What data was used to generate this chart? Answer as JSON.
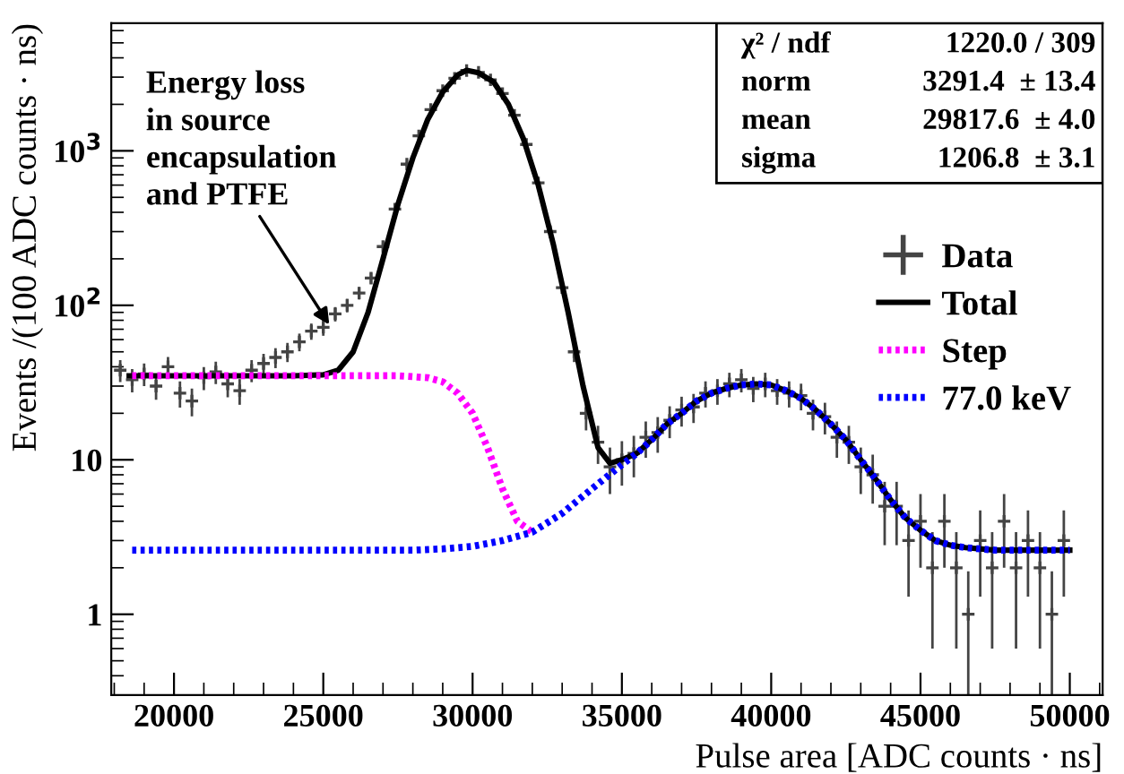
{
  "chart_data": {
    "type": "line",
    "xlabel": "Pulse area [ADC counts · ns]",
    "ylabel": "Events /(100 ADC counts · ns)",
    "xlim": [
      17900,
      51100
    ],
    "ylim": [
      0.3,
      6700
    ],
    "log": "y",
    "grid": false,
    "legend": "right",
    "xticks": [
      20000,
      25000,
      30000,
      35000,
      40000,
      45000,
      50000
    ],
    "yticks": [
      {
        "value": 1,
        "label": "1"
      },
      {
        "value": 10,
        "label": "10"
      },
      {
        "value": 100,
        "label": "10$^{2}$"
      },
      {
        "value": 1000,
        "label": "10$^{3}$"
      }
    ],
    "series": [
      {
        "name": "Data",
        "type": "scatter",
        "marker": "cross",
        "color": "#444444",
        "x": [
          18200,
          18600,
          19000,
          19400,
          19800,
          20200,
          20600,
          21000,
          21400,
          21800,
          22200,
          22600,
          23000,
          23400,
          23800,
          24200,
          24600,
          25000,
          25400,
          25800,
          26200,
          26600,
          27000,
          27400,
          27800,
          28200,
          28600,
          29000,
          29400,
          29800,
          30200,
          30600,
          31000,
          31400,
          31800,
          32200,
          32600,
          33000,
          33400,
          33800,
          34200,
          34600,
          35000,
          35400,
          35800,
          36200,
          36600,
          37000,
          37400,
          37800,
          38200,
          38600,
          39000,
          39400,
          39800,
          40200,
          40600,
          41000,
          41400,
          41800,
          42200,
          42600,
          43000,
          43400,
          43800,
          44200,
          44600,
          45000,
          45400,
          45800,
          46200,
          46600,
          47000,
          47400,
          47800,
          48200,
          48600,
          49000,
          49400,
          49800
        ],
        "values": [
          38,
          33,
          36,
          30,
          40,
          27,
          24,
          34,
          37,
          31,
          28,
          38,
          42,
          46,
          50,
          58,
          68,
          72,
          88,
          100,
          120,
          150,
          240,
          420,
          820,
          1250,
          1850,
          2450,
          2950,
          3310,
          3220,
          2880,
          2350,
          1700,
          1100,
          620,
          300,
          130,
          50,
          20,
          13,
          9,
          10,
          11,
          14,
          15,
          18,
          21,
          22,
          27,
          28,
          31,
          33,
          29,
          31,
          28,
          27,
          26,
          20,
          19,
          14,
          13,
          9,
          8,
          5,
          5,
          3,
          4,
          2,
          4,
          2,
          1,
          3,
          2,
          4,
          2,
          3,
          2,
          1,
          3
        ],
        "errors": [
          6.2,
          5.7,
          6,
          5.5,
          6.3,
          5.2,
          4.9,
          5.8,
          6.1,
          5.6,
          5.3,
          6.2,
          6.5,
          6.8,
          7.1,
          7.6,
          8.2,
          8.5,
          9.4,
          10,
          11,
          12,
          15,
          20,
          29,
          35,
          43,
          49,
          54,
          58,
          57,
          54,
          48,
          41,
          33,
          25,
          17,
          11,
          7.1,
          4.5,
          3.6,
          3,
          3.2,
          3.3,
          3.7,
          3.9,
          4.2,
          4.6,
          4.7,
          5.2,
          5.3,
          5.6,
          5.7,
          5.4,
          5.6,
          5.3,
          5.2,
          5.1,
          4.5,
          4.4,
          3.7,
          3.6,
          3,
          2.8,
          2.2,
          2.2,
          1.7,
          2,
          1.4,
          2,
          1.4,
          0.9,
          1.7,
          1.4,
          2,
          1.4,
          1.7,
          1.4,
          0.9,
          1.7
        ]
      },
      {
        "name": "Total",
        "line_style": "solid",
        "color": "#000000",
        "x": [
          18500,
          20000,
          22000,
          24000,
          25000,
          25500,
          26000,
          26500,
          27000,
          27500,
          28000,
          28500,
          29000,
          29500,
          29800,
          30200,
          30700,
          31200,
          31700,
          32200,
          32700,
          33200,
          33700,
          34200,
          34600,
          35000,
          35500,
          36000,
          36500,
          37000,
          37500,
          38000,
          38500,
          39000,
          39500,
          40000,
          40500,
          41000,
          41500,
          42000,
          42500,
          43000,
          43500,
          44000,
          44500,
          45000,
          45500,
          46000,
          46500,
          47500,
          49000,
          50000
        ],
        "values": [
          35,
          35,
          35,
          35,
          35.5,
          38,
          50,
          90,
          200,
          450,
          900,
          1600,
          2400,
          3100,
          3320,
          3200,
          2800,
          2000,
          1200,
          600,
          250,
          90,
          30,
          12,
          9.5,
          10,
          11,
          13.5,
          17,
          20,
          24,
          27,
          29,
          30.5,
          31,
          30.5,
          28,
          25,
          21,
          17,
          13.5,
          10,
          7.5,
          5.5,
          4.2,
          3.5,
          3,
          2.8,
          2.7,
          2.6,
          2.6,
          2.6
        ]
      },
      {
        "name": "Step",
        "line_style": "dotted",
        "color": "#ff00ff",
        "x": [
          18600,
          20000,
          22000,
          24000,
          26000,
          27500,
          28000,
          28500,
          29000,
          29500,
          30000,
          30500,
          31000,
          31500,
          32000
        ],
        "values": [
          35,
          35,
          35,
          35,
          35,
          35,
          34.5,
          34,
          32,
          27,
          20,
          12,
          6.5,
          4,
          3.4
        ]
      },
      {
        "name": "77.0 keV",
        "line_style": "dotted",
        "color": "#0000ff",
        "x": [
          18600,
          20000,
          22000,
          24000,
          26000,
          28000,
          29000,
          30000,
          31000,
          32000,
          33000,
          34000,
          35000,
          35500,
          36000,
          36500,
          37000,
          37500,
          38000,
          38500,
          39000,
          39500,
          40000,
          40500,
          41000,
          41500,
          42000,
          42500,
          43000,
          43500,
          44000,
          44500,
          45000,
          45500,
          46000,
          46500,
          47500,
          49000,
          50000
        ],
        "values": [
          2.6,
          2.6,
          2.6,
          2.6,
          2.6,
          2.6,
          2.65,
          2.75,
          3,
          3.4,
          4.5,
          6.5,
          9.3,
          11,
          13.5,
          17,
          20,
          24,
          27,
          29,
          30.5,
          31,
          30.5,
          28,
          25,
          21,
          17,
          13.5,
          10,
          7.5,
          5.5,
          4.2,
          3.5,
          3,
          2.8,
          2.7,
          2.6,
          2.6,
          2.6
        ]
      }
    ],
    "annotations": [
      {
        "text": "Energy loss\nin source\nencapsulation\nand PTFE",
        "x": 25200,
        "y": 75
      },
      "χ² / ndf",
      "1220.0 / 309",
      "norm",
      "3291.4  ± 13.4",
      "mean",
      "29817.6  ± 4.0",
      "sigma",
      "1206.8  ± 3.1"
    ]
  }
}
